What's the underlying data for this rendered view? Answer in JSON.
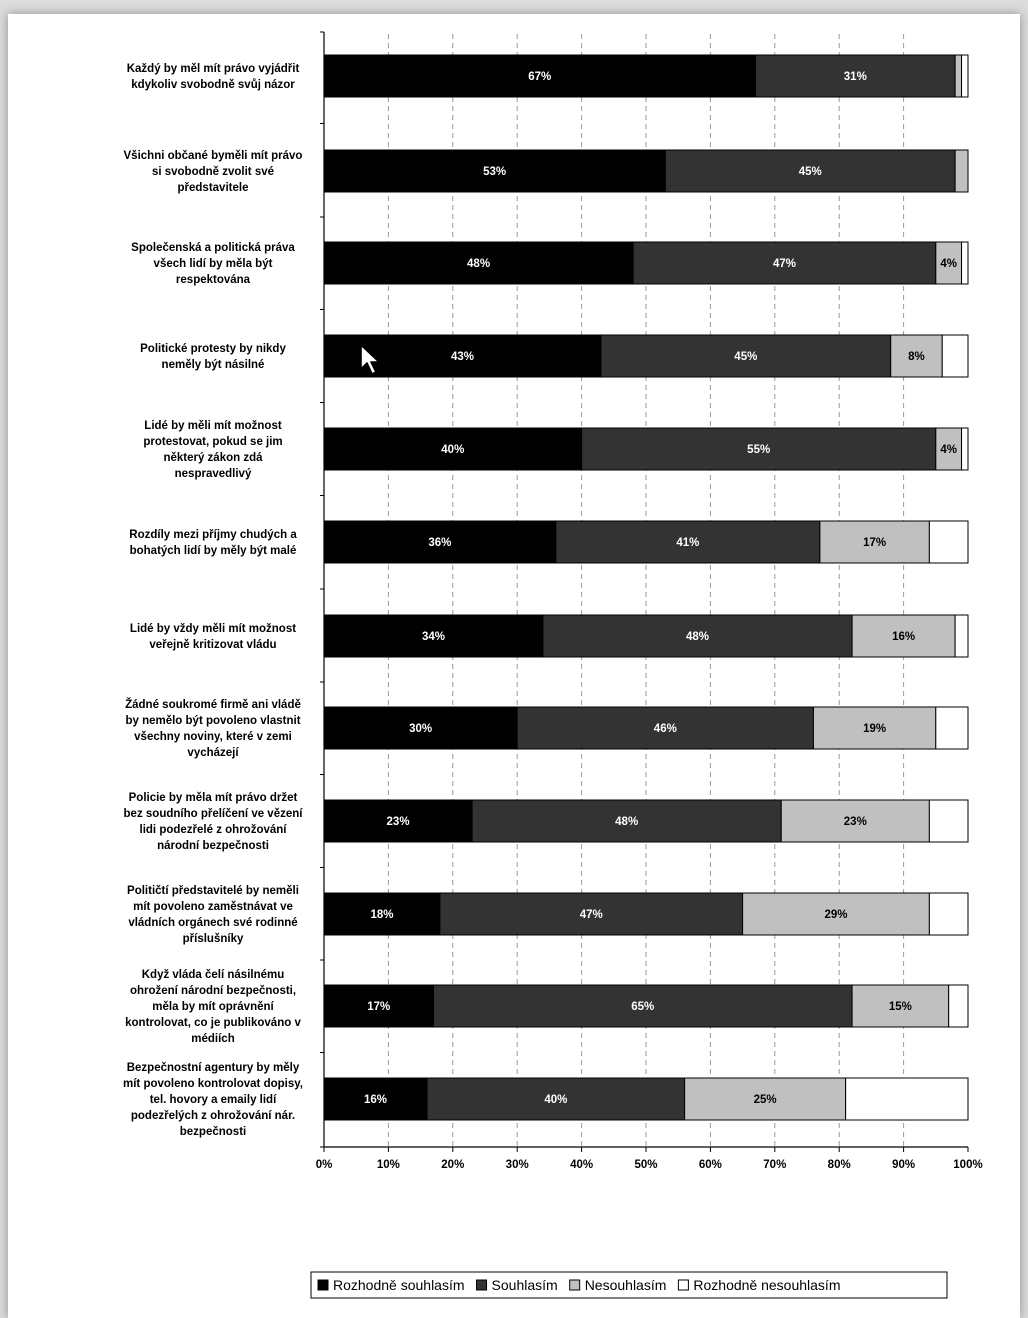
{
  "chart_data": {
    "type": "bar",
    "orientation": "horizontal",
    "stacked": true,
    "normalized": true,
    "x_range": [
      0,
      100
    ],
    "x_ticks": [
      "0%",
      "10%",
      "20%",
      "30%",
      "40%",
      "50%",
      "60%",
      "70%",
      "80%",
      "90%",
      "100%"
    ],
    "grid": "vertical dashed",
    "legend_position": "bottom",
    "categories": [
      [
        "Každý by měl mít právo vyjádřit",
        "kdykoliv svobodně svůj názor"
      ],
      [
        "Všichni občané byměli mít právo",
        "si svobodně zvolit své",
        "představitele"
      ],
      [
        "Společenská a politická práva",
        "všech lidí by měla být",
        "respektována"
      ],
      [
        "Politické protesty by nikdy",
        "neměly být násilné"
      ],
      [
        "Lidé by měli mít možnost",
        "protestovat, pokud se jim",
        "některý zákon zdá",
        "nespravedlivý"
      ],
      [
        "Rozdíly mezi příjmy chudých a",
        "bohatých lidí by měly být malé"
      ],
      [
        "Lidé by vždy měli mít možnost",
        "veřejně kritizovat vládu"
      ],
      [
        "Žádné soukromé firmě ani vládě",
        "by nemělo být povoleno vlastnit",
        "všechny noviny, které v zemi",
        "vycházejí"
      ],
      [
        "Policie by měla mít právo držet",
        "bez soudního přelíčení ve vězení",
        "lidi podezřelé z ohrožování",
        "národní bezpečnosti"
      ],
      [
        "Političtí představitelé by neměli",
        "mít povoleno zaměstnávat ve",
        "vládních orgánech své rodinné",
        "příslušníky"
      ],
      [
        "Když vláda čelí násilnému",
        "ohrožení národní bezpečnosti,",
        "měla by mít oprávnění",
        "kontrolovat, co je publikováno v",
        "médiích"
      ],
      [
        "Bezpečnostní agentury by měly",
        "mít povoleno kontrolovat dopisy,",
        "tel. hovory a emaily lidí",
        "podezřelých z ohrožování nár.",
        "bezpečnosti"
      ]
    ],
    "series": [
      {
        "name": "Rozhodně souhlasím",
        "color": "#000000",
        "label_color": "#ffffff",
        "values": [
          67,
          53,
          48,
          43,
          40,
          36,
          34,
          30,
          23,
          18,
          17,
          16
        ],
        "labels": [
          "67%",
          "53%",
          "48%",
          "43%",
          "40%",
          "36%",
          "34%",
          "30%",
          "23%",
          "18%",
          "17%",
          "16%"
        ]
      },
      {
        "name": "Souhlasím",
        "color": "#333333",
        "label_color": "#ffffff",
        "values": [
          31,
          45,
          47,
          45,
          55,
          41,
          48,
          46,
          48,
          47,
          65,
          40
        ],
        "labels": [
          "31%",
          "45%",
          "47%",
          "45%",
          "55%",
          "41%",
          "48%",
          "46%",
          "48%",
          "47%",
          "65%",
          "40%"
        ]
      },
      {
        "name": "Nesouhlasím",
        "color": "#c0c0c0",
        "label_color": "#000000",
        "values": [
          1,
          2,
          4,
          8,
          4,
          17,
          16,
          19,
          23,
          29,
          15,
          25
        ],
        "labels": [
          "",
          "",
          "4%",
          "8%",
          "4%",
          "17%",
          "16%",
          "19%",
          "23%",
          "29%",
          "15%",
          "25%"
        ]
      },
      {
        "name": "Rozhodně nesouhlasím",
        "color": "#ffffff",
        "label_color": "#000000",
        "values": [
          1,
          0,
          1,
          4,
          1,
          6,
          2,
          5,
          6,
          6,
          3,
          19
        ],
        "labels": [
          "",
          "",
          "",
          "",
          "",
          "",
          "",
          "",
          "",
          "",
          "",
          ""
        ]
      }
    ]
  }
}
